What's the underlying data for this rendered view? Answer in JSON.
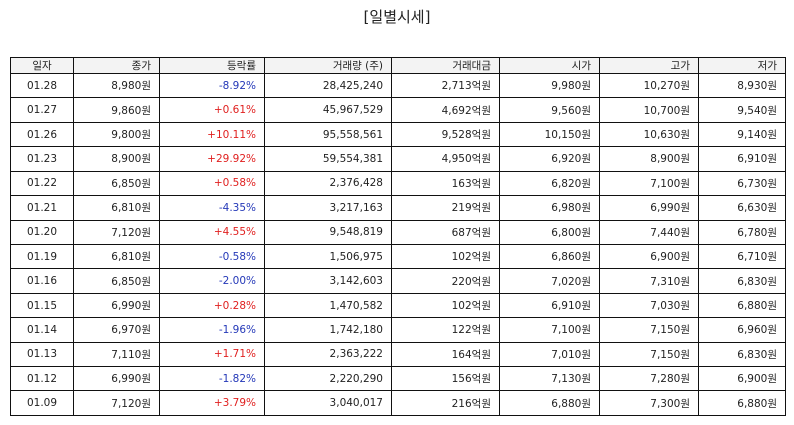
{
  "title": "[일별시세]",
  "columns": [
    "일자",
    "종가",
    "등락률",
    "거래량 (주)",
    "거래대금",
    "시가",
    "고가",
    "저가"
  ],
  "colors": {
    "up": "#e0201f",
    "down": "#2438b8"
  },
  "rows": [
    {
      "date": "01.28",
      "close": "8,980원",
      "change": "-8.92%",
      "dir": "down",
      "volume": "28,425,240",
      "amount": "2,713억원",
      "open": "9,980원",
      "high": "10,270원",
      "low": "8,930원"
    },
    {
      "date": "01.27",
      "close": "9,860원",
      "change": "+0.61%",
      "dir": "up",
      "volume": "45,967,529",
      "amount": "4,692억원",
      "open": "9,560원",
      "high": "10,700원",
      "low": "9,540원"
    },
    {
      "date": "01.26",
      "close": "9,800원",
      "change": "+10.11%",
      "dir": "up",
      "volume": "95,558,561",
      "amount": "9,528억원",
      "open": "10,150원",
      "high": "10,630원",
      "low": "9,140원"
    },
    {
      "date": "01.23",
      "close": "8,900원",
      "change": "+29.92%",
      "dir": "up",
      "volume": "59,554,381",
      "amount": "4,950억원",
      "open": "6,920원",
      "high": "8,900원",
      "low": "6,910원"
    },
    {
      "date": "01.22",
      "close": "6,850원",
      "change": "+0.58%",
      "dir": "up",
      "volume": "2,376,428",
      "amount": "163억원",
      "open": "6,820원",
      "high": "7,100원",
      "low": "6,730원"
    },
    {
      "date": "01.21",
      "close": "6,810원",
      "change": "-4.35%",
      "dir": "down",
      "volume": "3,217,163",
      "amount": "219억원",
      "open": "6,980원",
      "high": "6,990원",
      "low": "6,630원"
    },
    {
      "date": "01.20",
      "close": "7,120원",
      "change": "+4.55%",
      "dir": "up",
      "volume": "9,548,819",
      "amount": "687억원",
      "open": "6,800원",
      "high": "7,440원",
      "low": "6,780원"
    },
    {
      "date": "01.19",
      "close": "6,810원",
      "change": "-0.58%",
      "dir": "down",
      "volume": "1,506,975",
      "amount": "102억원",
      "open": "6,860원",
      "high": "6,900원",
      "low": "6,710원"
    },
    {
      "date": "01.16",
      "close": "6,850원",
      "change": "-2.00%",
      "dir": "down",
      "volume": "3,142,603",
      "amount": "220억원",
      "open": "7,020원",
      "high": "7,310원",
      "low": "6,830원"
    },
    {
      "date": "01.15",
      "close": "6,990원",
      "change": "+0.28%",
      "dir": "up",
      "volume": "1,470,582",
      "amount": "102억원",
      "open": "6,910원",
      "high": "7,030원",
      "low": "6,880원"
    },
    {
      "date": "01.14",
      "close": "6,970원",
      "change": "-1.96%",
      "dir": "down",
      "volume": "1,742,180",
      "amount": "122억원",
      "open": "7,100원",
      "high": "7,150원",
      "low": "6,960원"
    },
    {
      "date": "01.13",
      "close": "7,110원",
      "change": "+1.71%",
      "dir": "up",
      "volume": "2,363,222",
      "amount": "164억원",
      "open": "7,010원",
      "high": "7,150원",
      "low": "6,830원"
    },
    {
      "date": "01.12",
      "close": "6,990원",
      "change": "-1.82%",
      "dir": "down",
      "volume": "2,220,290",
      "amount": "156억원",
      "open": "7,130원",
      "high": "7,280원",
      "low": "6,900원"
    },
    {
      "date": "01.09",
      "close": "7,120원",
      "change": "+3.79%",
      "dir": "up",
      "volume": "3,040,017",
      "amount": "216억원",
      "open": "6,880원",
      "high": "7,300원",
      "low": "6,880원"
    }
  ]
}
